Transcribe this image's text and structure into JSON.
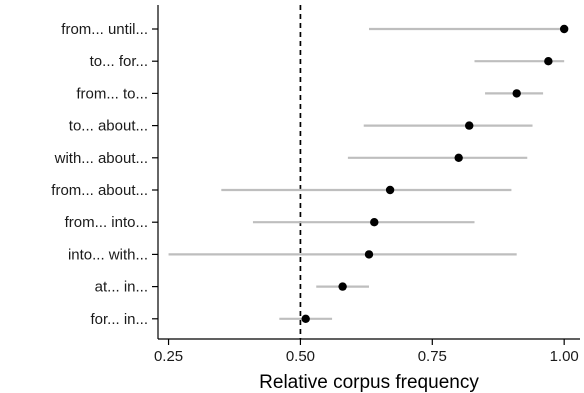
{
  "chart_data": {
    "type": "scatter",
    "xlabel": "Relative corpus frequency",
    "ylabel": "",
    "xlim": [
      0.23,
      1.03
    ],
    "xticks": [
      "0.25",
      "0.50",
      "0.75",
      "1.00"
    ],
    "xtick_values": [
      0.25,
      0.5,
      0.75,
      1.0
    ],
    "reference_line": 0.5,
    "grid": false,
    "legend": "none",
    "categories": [
      "from... until...",
      "to... for...",
      "from... to...",
      "to... about...",
      "with... about...",
      "from... about...",
      "from... into...",
      "into... with...",
      "at... in...",
      "for... in..."
    ],
    "series": [
      {
        "values": [
          1.0,
          0.97,
          0.91,
          0.82,
          0.8,
          0.67,
          0.64,
          0.63,
          0.58,
          0.51
        ],
        "lower": [
          0.63,
          0.83,
          0.85,
          0.62,
          0.59,
          0.35,
          0.41,
          0.25,
          0.53,
          0.46
        ],
        "upper": [
          1.0,
          1.0,
          0.96,
          0.94,
          0.93,
          0.9,
          0.83,
          0.91,
          0.63,
          0.56
        ]
      }
    ],
    "colors": {
      "point": "#000000",
      "interval": "#bebebe",
      "reference": "#000000",
      "axis": "#000000"
    }
  }
}
